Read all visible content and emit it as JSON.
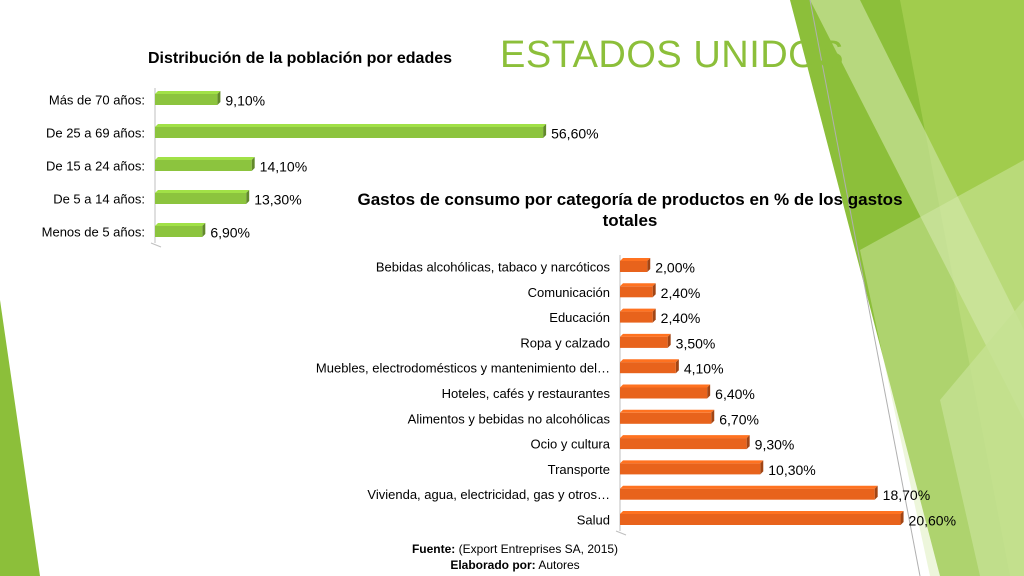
{
  "slide": {
    "title": "ESTADOS UNIDOS",
    "footer_source_label": "Fuente:",
    "footer_source_text": "(Export Entreprises SA, 2015)",
    "footer_author_label": "Elaborado por:",
    "footer_author_text": "Autores"
  },
  "colors": {
    "title": "#8cbf3a",
    "green_bar": "#8cc43e",
    "orange_bar": "#e8631c",
    "deco_green_dark": "#8cbf3a",
    "deco_green_light": "#c9e29b"
  },
  "chart_data": [
    {
      "type": "bar",
      "orientation": "horizontal",
      "title": "Distribución de la población por edades",
      "categories": [
        "Más de 70 años:",
        "De 25 a 69 años:",
        "De 15 a 24 años:",
        "De 5 a 14 años:",
        "Menos de 5 años:"
      ],
      "values": [
        9.1,
        56.6,
        14.1,
        13.3,
        6.9
      ],
      "labels": [
        "9,10%",
        "56,60%",
        "14,10%",
        "13,30%",
        "6,90%"
      ],
      "color": "#8cc43e",
      "xlim": [
        0,
        70
      ]
    },
    {
      "type": "bar",
      "orientation": "horizontal",
      "title": "Gastos de consumo por categoría de productos en % de los gastos totales",
      "categories": [
        "Bebidas alcohólicas, tabaco y narcóticos",
        "Comunicación",
        "Educación",
        "Ropa y calzado",
        "Muebles, electrodomésticos y mantenimiento del…",
        "Hoteles, cafés y restaurantes",
        "Alimentos y bebidas no alcohólicas",
        "Ocio y cultura",
        "Transporte",
        "Vivienda, agua, electricidad, gas y otros…",
        "Salud"
      ],
      "values": [
        2.0,
        2.4,
        2.4,
        3.5,
        4.1,
        6.4,
        6.7,
        9.3,
        10.3,
        18.7,
        20.6
      ],
      "labels": [
        "2,00%",
        "2,40%",
        "2,40%",
        "3,50%",
        "4,10%",
        "6,40%",
        "6,70%",
        "9,30%",
        "10,30%",
        "18,70%",
        "20,60%"
      ],
      "color": "#e8631c",
      "xlim": [
        0,
        21
      ]
    }
  ]
}
